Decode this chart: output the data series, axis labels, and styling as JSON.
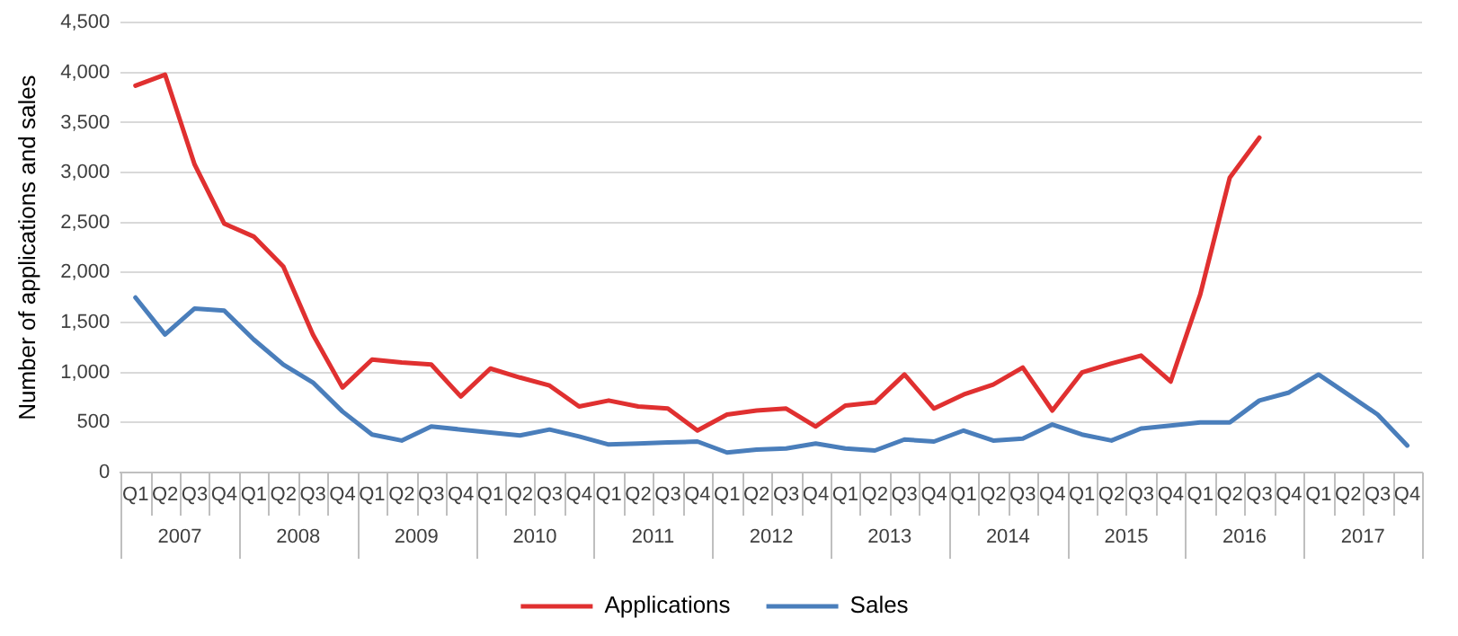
{
  "chart_data": {
    "type": "line",
    "ylabel": "Number of applications and sales",
    "categories": [
      "Q1",
      "Q2",
      "Q3",
      "Q4",
      "Q1",
      "Q2",
      "Q3",
      "Q4",
      "Q1",
      "Q2",
      "Q3",
      "Q4",
      "Q1",
      "Q2",
      "Q3",
      "Q4",
      "Q1",
      "Q2",
      "Q3",
      "Q4",
      "Q1",
      "Q2",
      "Q3",
      "Q4",
      "Q1",
      "Q2",
      "Q3",
      "Q4",
      "Q1",
      "Q2",
      "Q3",
      "Q4",
      "Q1",
      "Q2",
      "Q3",
      "Q4",
      "Q1",
      "Q2",
      "Q3",
      "Q4",
      "Q1",
      "Q2",
      "Q3",
      "Q4"
    ],
    "annotations": [
      "2007",
      "2008",
      "2009",
      "2010",
      "2011",
      "2012",
      "2013",
      "2014",
      "2015",
      "2016",
      "2017"
    ],
    "series": [
      {
        "name": "Applications",
        "color": "#e03030",
        "values": [
          3870,
          3980,
          3080,
          2490,
          2360,
          2060,
          1380,
          850,
          1130,
          1100,
          1080,
          760,
          1040,
          950,
          870,
          660,
          720,
          660,
          640,
          420,
          580,
          620,
          640,
          460,
          670,
          700,
          980,
          640,
          780,
          880,
          1050,
          620,
          1000,
          1090,
          1170,
          910,
          1780,
          2950,
          3350,
          null,
          null,
          null,
          null,
          null
        ]
      },
      {
        "name": "Sales",
        "color": "#4a7ebb",
        "values": [
          1750,
          1380,
          1640,
          1620,
          1330,
          1080,
          900,
          610,
          380,
          320,
          460,
          430,
          400,
          370,
          430,
          360,
          280,
          290,
          300,
          310,
          200,
          230,
          240,
          290,
          240,
          220,
          330,
          310,
          420,
          320,
          340,
          480,
          380,
          320,
          440,
          470,
          500,
          500,
          720,
          800,
          980,
          780,
          580,
          270
        ]
      }
    ],
    "ylim": [
      0,
      4500
    ],
    "yticks": [
      {
        "value": 0,
        "label": "0"
      },
      {
        "value": 500,
        "label": "500"
      },
      {
        "value": 1000,
        "label": "1,000"
      },
      {
        "value": 1500,
        "label": "1,500"
      },
      {
        "value": 2000,
        "label": "2,000"
      },
      {
        "value": 2500,
        "label": "2,500"
      },
      {
        "value": 3000,
        "label": "3,000"
      },
      {
        "value": 3500,
        "label": "3,500"
      },
      {
        "value": 4000,
        "label": "4,000"
      },
      {
        "value": 4500,
        "label": "4,500"
      }
    ],
    "grid": "y",
    "legend": "bottom",
    "marker": "none",
    "line_style": "solid"
  }
}
